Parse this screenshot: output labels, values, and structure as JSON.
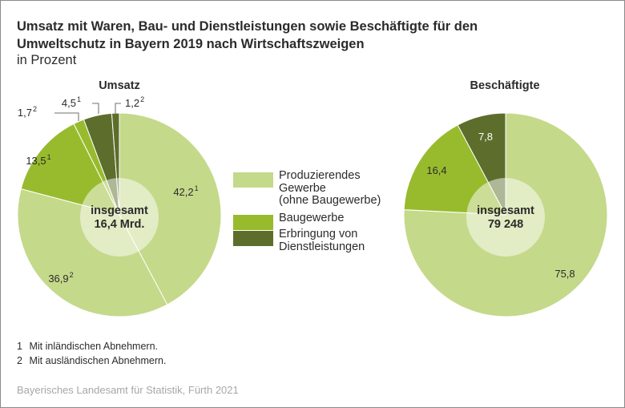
{
  "header": {
    "title_line1": "Umsatz mit Waren, Bau- und Dienstleistungen sowie Beschäftigte für den",
    "title_line2": "Umweltschutz in Bayern 2019 nach Wirtschaftszweigen",
    "subtitle": "in Prozent"
  },
  "colors": {
    "produzierendes_gewerbe": "#c5d98a",
    "baugewerbe": "#98bb2e",
    "dienstleistungen": "#5d6e2c",
    "leader_line": "#8c8c8c"
  },
  "legend": [
    {
      "label": "Produzierendes\nGewerbe\n(ohne Baugewerbe)",
      "color": "#c5d98a"
    },
    {
      "label": "Baugewerbe",
      "color": "#98bb2e"
    },
    {
      "label": "Erbringung von\nDienstleistungen",
      "color": "#5d6e2c"
    }
  ],
  "chart_data": [
    {
      "type": "pie",
      "title": "Umsatz",
      "center_label_line1": "insgesamt",
      "center_label_line2": "16,4 Mrd.",
      "unit": "Prozent",
      "start": "top, clockwise",
      "slices": [
        {
          "category": "Produzierendes Gewerbe (ohne Baugewerbe)",
          "customers": "inländisch",
          "value": 42.2,
          "label": "42,2",
          "footnote": "1",
          "color": "#c5d98a"
        },
        {
          "category": "Produzierendes Gewerbe (ohne Baugewerbe)",
          "customers": "ausländisch",
          "value": 36.9,
          "label": "36,9",
          "footnote": "2",
          "color": "#c5d98a"
        },
        {
          "category": "Baugewerbe",
          "customers": "inländisch",
          "value": 13.5,
          "label": "13,5",
          "footnote": "1",
          "color": "#98bb2e"
        },
        {
          "category": "Baugewerbe",
          "customers": "ausländisch",
          "value": 1.7,
          "label": "1,7",
          "footnote": "2",
          "color": "#98bb2e"
        },
        {
          "category": "Erbringung von Dienstleistungen",
          "customers": "inländisch",
          "value": 4.5,
          "label": "4,5",
          "footnote": "1",
          "color": "#5d6e2c"
        },
        {
          "category": "Erbringung von Dienstleistungen",
          "customers": "ausländisch",
          "value": 1.2,
          "label": "1,2",
          "footnote": "2",
          "color": "#5d6e2c"
        }
      ]
    },
    {
      "type": "pie",
      "title": "Beschäftigte",
      "center_label_line1": "insgesamt",
      "center_label_line2": "79 248",
      "unit": "Prozent",
      "start": "top, clockwise",
      "slices": [
        {
          "category": "Produzierendes Gewerbe (ohne Baugewerbe)",
          "value": 75.8,
          "label": "75,8",
          "footnote": "",
          "color": "#c5d98a"
        },
        {
          "category": "Baugewerbe",
          "value": 16.4,
          "label": "16,4",
          "footnote": "",
          "color": "#98bb2e"
        },
        {
          "category": "Erbringung von Dienstleistungen",
          "value": 7.8,
          "label": "7,8",
          "footnote": "",
          "color": "#5d6e2c"
        }
      ]
    }
  ],
  "footnotes": [
    {
      "num": "1",
      "text": "Mit inländischen Abnehmern."
    },
    {
      "num": "2",
      "text": "Mit ausländischen Abnehmern."
    }
  ],
  "source": "Bayerisches Landesamt für Statistik, Fürth 2021"
}
